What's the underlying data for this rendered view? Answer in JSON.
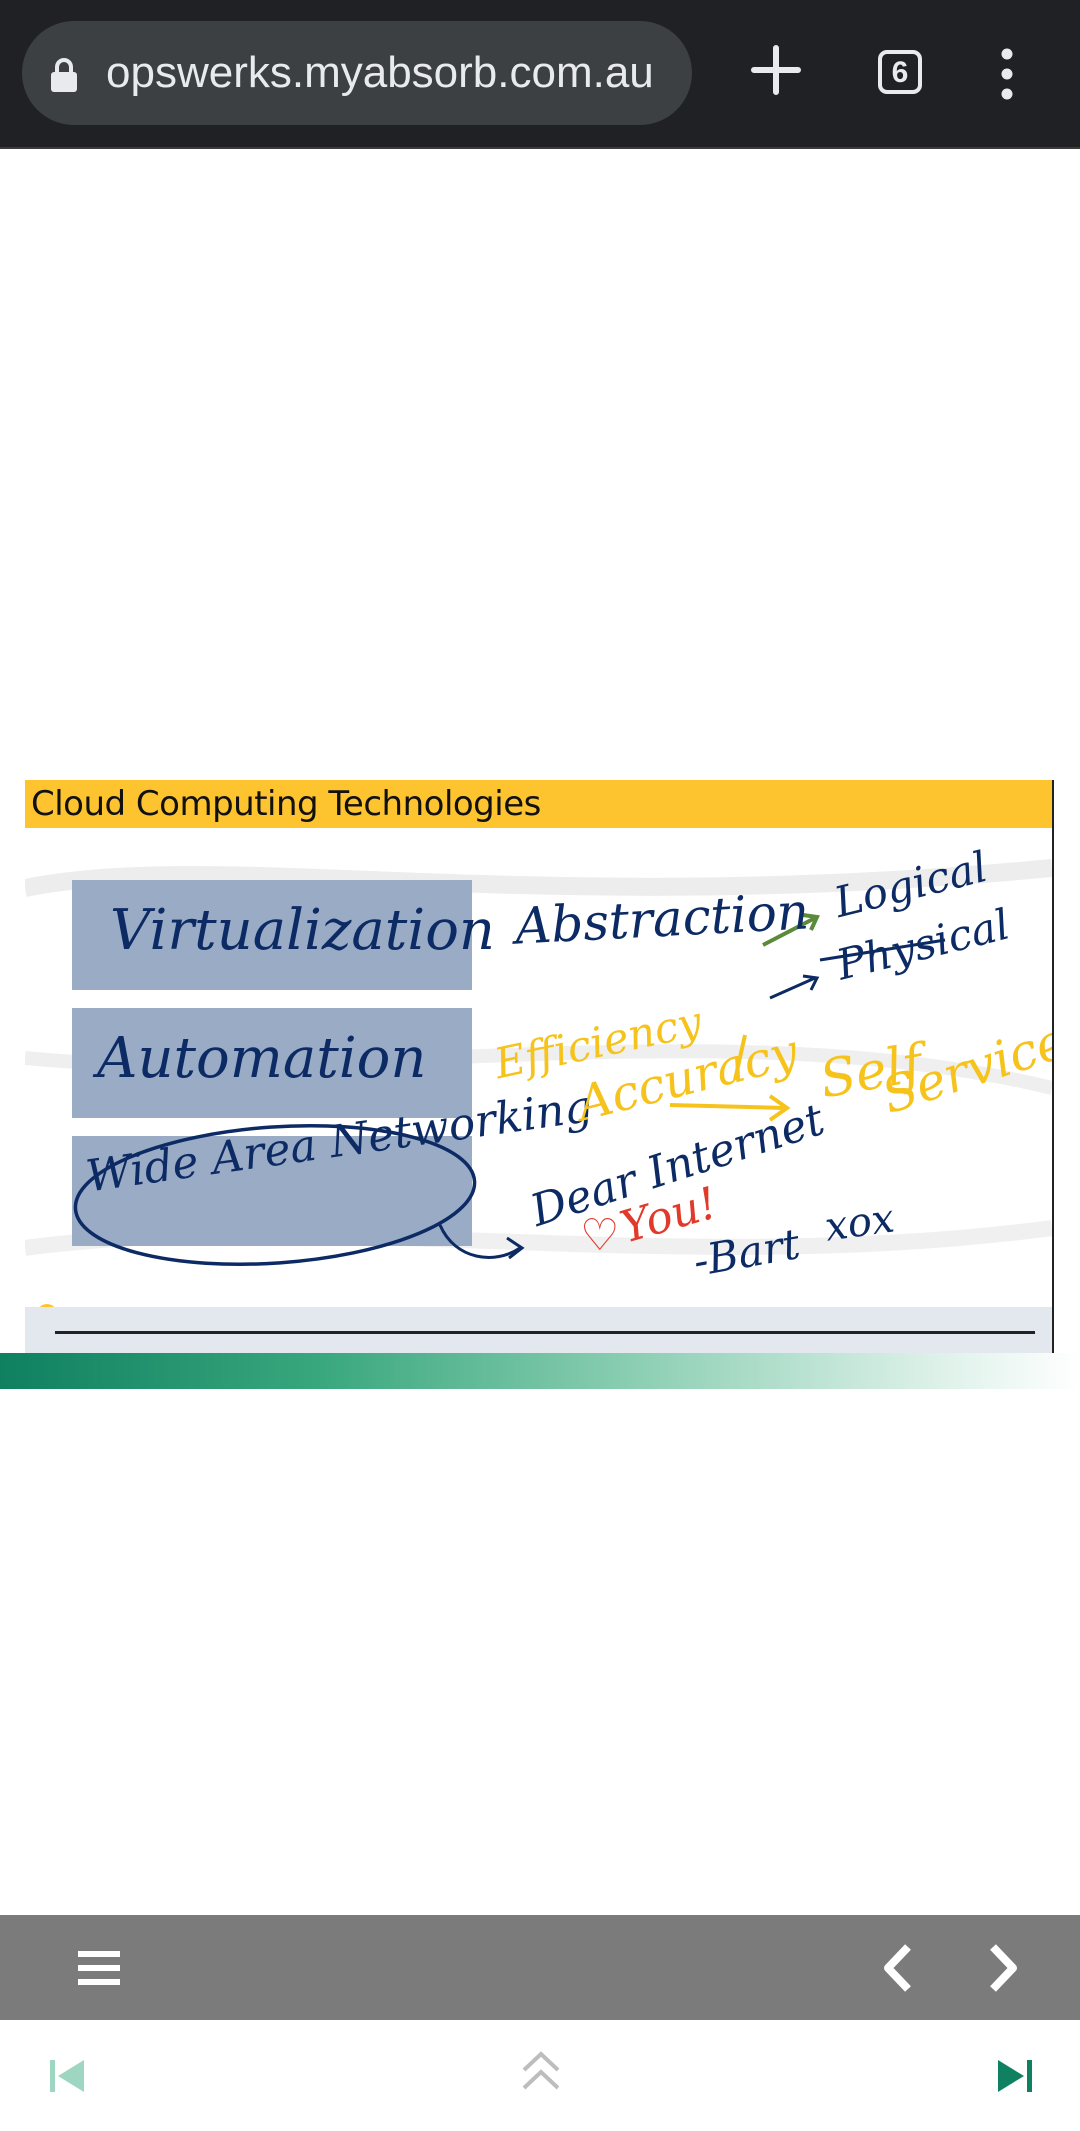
{
  "browser": {
    "url": "opswerks.myabsorb.com.au",
    "tab_count": "6",
    "icons": [
      "lock-icon",
      "new-tab-plus-icon",
      "tab-switcher-icon",
      "more-options-icon"
    ]
  },
  "slide": {
    "title": "Cloud Computing Technologies",
    "boxes": [
      "Virtualization",
      "Automation",
      "Wide Area Networking"
    ],
    "notes": {
      "abstraction": "Abstraction",
      "logical": "Logical",
      "physical": "Physical",
      "efficiency": "Efficiency",
      "accuracy": "Accuracy",
      "self_service_1": "Self",
      "self_service_2": "Service",
      "dear_internet": "Dear Internet",
      "love_you": "You!",
      "signoff": "-Bart",
      "xox": "xox"
    },
    "colors": {
      "header": "#fec42f",
      "box": "#9aabc6",
      "ink_navy": "#0c2a63",
      "ink_yellow": "#f6c31c",
      "ink_red": "#e13a2b",
      "arrow_green": "#5a8a3a"
    }
  },
  "player": {
    "toolbar_color": "#7b7b7b",
    "icons": [
      "menu-icon",
      "previous-slide-icon",
      "next-slide-icon"
    ],
    "bottom_icons": [
      "first-page-icon",
      "collapse-up-icon",
      "last-page-icon"
    ],
    "accent": "#0f8060"
  }
}
